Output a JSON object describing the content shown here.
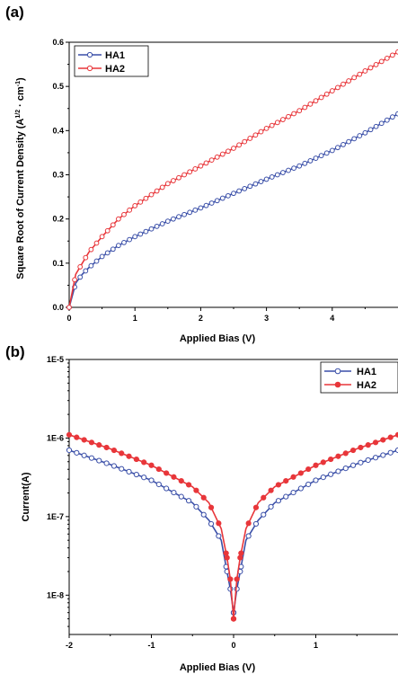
{
  "figure": {
    "panel_a_label": "(a)",
    "panel_b_label": "(b)"
  },
  "colors": {
    "HA1": "#3a4fa8",
    "HA2": "#e8363a"
  },
  "chart_data": [
    {
      "type": "line",
      "panel": "(a)",
      "xlabel": "Applied Bias (V)",
      "ylabel": "Square Root of Current Density (A",
      "ylabel_sup": "1/2",
      "ylabel_tail": "· cm",
      "ylabel_tail_sup": "-1",
      "ylabel_close": ")",
      "xlim": [
        0,
        5
      ],
      "ylim": [
        0,
        0.6
      ],
      "x_ticks": [
        0,
        1,
        2,
        3,
        4
      ],
      "x_tick_labels": [
        "0",
        "1",
        "2",
        "3",
        "4"
      ],
      "y_ticks": [
        0.0,
        0.1,
        0.2,
        0.3,
        0.4,
        0.5,
        0.6
      ],
      "y_tick_labels": [
        "0.0",
        "0.1",
        "0.2",
        "0.3",
        "0.4",
        "0.5",
        "0.6"
      ],
      "legend": "top-left",
      "series": [
        {
          "name": "HA1",
          "color": "#3a4fa8",
          "x": [
            0,
            0.1,
            0.2,
            0.3,
            0.5,
            0.75,
            1.0,
            1.5,
            2.0,
            2.5,
            3.0,
            3.5,
            4.0,
            4.5,
            5.0
          ],
          "y": [
            0.0,
            0.055,
            0.075,
            0.09,
            0.115,
            0.14,
            0.16,
            0.195,
            0.225,
            0.258,
            0.29,
            0.32,
            0.355,
            0.395,
            0.438
          ]
        },
        {
          "name": "HA2",
          "color": "#e8363a",
          "x": [
            0,
            0.1,
            0.2,
            0.3,
            0.5,
            0.75,
            1.0,
            1.5,
            2.0,
            2.5,
            3.0,
            3.5,
            4.0,
            4.5,
            5.0
          ],
          "y": [
            0.0,
            0.075,
            0.1,
            0.125,
            0.16,
            0.2,
            0.23,
            0.28,
            0.32,
            0.36,
            0.405,
            0.445,
            0.49,
            0.535,
            0.578
          ]
        }
      ]
    },
    {
      "type": "line",
      "panel": "(b)",
      "xlabel": "Applied Bias (V)",
      "ylabel": "Current(A)",
      "xlim": [
        -2,
        2
      ],
      "ylim": [
        1e-09,
        1e-05
      ],
      "yscale": "log",
      "ylim_shown_exponent": [
        -8.5,
        -5
      ],
      "x_ticks": [
        -2,
        -1,
        0,
        1
      ],
      "x_tick_labels": [
        "-2",
        "-1",
        "0",
        "1"
      ],
      "y_ticks": [
        1e-08,
        1e-07,
        1e-06,
        1e-05
      ],
      "y_tick_labels": [
        "1E-8",
        "1E-7",
        "1E-6",
        "1E-5"
      ],
      "legend": "top-right",
      "series": [
        {
          "name": "HA1",
          "color": "#3a4fa8",
          "x": [
            -2.0,
            -1.5,
            -1.0,
            -0.5,
            -0.3,
            -0.15,
            -0.08,
            -0.04,
            0.0,
            0.04,
            0.08,
            0.15,
            0.3,
            0.5,
            1.0,
            1.5,
            2.0
          ],
          "y": [
            7e-07,
            4.6e-07,
            2.9e-07,
            1.5e-07,
            9e-08,
            5e-08,
            2e-08,
            1.2e-08,
            6e-09,
            1.2e-08,
            2e-08,
            5e-08,
            9e-08,
            1.5e-07,
            2.9e-07,
            4.7e-07,
            7e-07
          ]
        },
        {
          "name": "HA2",
          "color": "#e8363a",
          "x": [
            -2.0,
            -1.5,
            -1.0,
            -0.5,
            -0.3,
            -0.15,
            -0.08,
            -0.04,
            0.0,
            0.04,
            0.08,
            0.15,
            0.3,
            0.5,
            1.0,
            1.5,
            2.0
          ],
          "y": [
            1.1e-06,
            7.3e-07,
            4.5e-07,
            2.4e-07,
            1.5e-07,
            7e-08,
            3e-08,
            1.6e-08,
            5e-09,
            1.6e-08,
            3e-08,
            7e-08,
            1.5e-07,
            2.4e-07,
            4.5e-07,
            7.3e-07,
            1.1e-06
          ]
        }
      ]
    }
  ]
}
